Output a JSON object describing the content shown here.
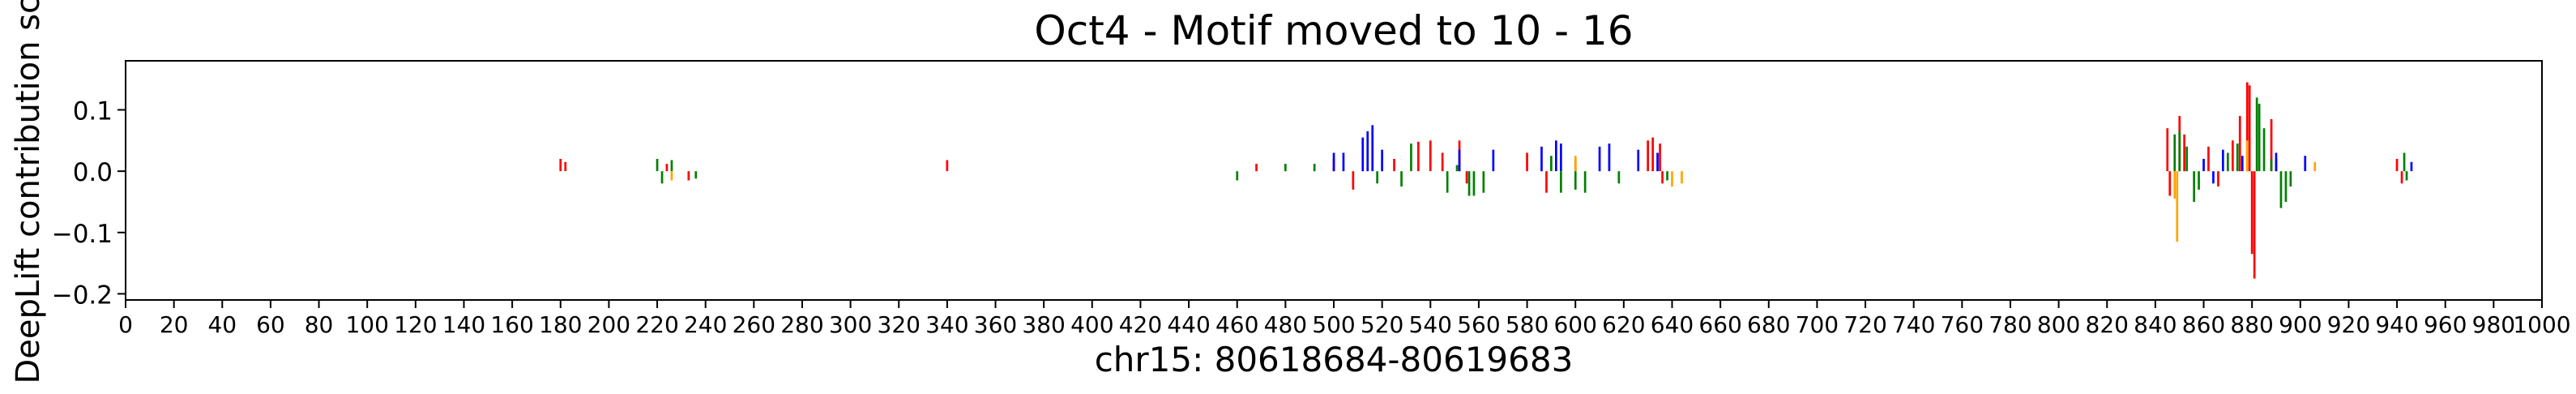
{
  "chart_data": {
    "type": "bar",
    "title": "Oct4 - Motif moved to 10 - 16",
    "xlabel": "chr15: 80618684-80619683",
    "ylabel": "DeepLift contribution sco",
    "xlim": [
      0,
      1000
    ],
    "ylim": [
      -0.21,
      0.18
    ],
    "x_ticks": [
      0,
      20,
      40,
      60,
      80,
      100,
      120,
      140,
      160,
      180,
      200,
      220,
      240,
      260,
      280,
      300,
      320,
      340,
      360,
      380,
      400,
      420,
      440,
      460,
      480,
      500,
      520,
      540,
      560,
      580,
      600,
      620,
      640,
      660,
      680,
      700,
      720,
      740,
      760,
      780,
      800,
      820,
      840,
      860,
      880,
      900,
      920,
      940,
      960,
      980,
      1000
    ],
    "x_tick_labels": [
      "0",
      "20",
      "40",
      "60",
      "80",
      "100",
      "120",
      "140",
      "160",
      "180",
      "200",
      "220",
      "240",
      "260",
      "280",
      "300",
      "320",
      "340",
      "360",
      "380",
      "400",
      "420",
      "440",
      "460",
      "480",
      "500",
      "520",
      "540",
      "560",
      "580",
      "600",
      "620",
      "640",
      "660",
      "680",
      "700",
      "720",
      "740",
      "760",
      "780",
      "800",
      "820",
      "840",
      "860",
      "880",
      "900",
      "920",
      "940",
      "960",
      "980",
      "1000"
    ],
    "y_ticks": [
      0.1,
      0.0,
      -0.1,
      -0.2
    ],
    "y_tick_labels": [
      "0.1",
      "0.0",
      "−0.1",
      "−0.2"
    ],
    "legend": "none",
    "grid": false,
    "series": [
      {
        "color": "#ff0000",
        "values": [
          [
            180,
            0.02
          ],
          [
            182,
            0.015
          ],
          [
            224,
            0.012
          ],
          [
            233,
            -0.015
          ],
          [
            340,
            0.018
          ],
          [
            468,
            0.012
          ],
          [
            500,
            0.02
          ],
          [
            508,
            -0.03
          ],
          [
            525,
            0.02
          ],
          [
            535,
            0.048
          ],
          [
            540,
            0.05
          ],
          [
            545,
            0.03
          ],
          [
            552,
            0.05
          ],
          [
            555,
            -0.02
          ],
          [
            580,
            0.03
          ],
          [
            588,
            -0.035
          ],
          [
            600,
            0.02
          ],
          [
            630,
            0.05
          ],
          [
            632,
            0.055
          ],
          [
            635,
            0.045
          ],
          [
            636,
            -0.02
          ],
          [
            845,
            0.07
          ],
          [
            846,
            -0.04
          ],
          [
            850,
            0.09
          ],
          [
            852,
            0.06
          ],
          [
            862,
            0.04
          ],
          [
            866,
            -0.025
          ],
          [
            872,
            0.05
          ],
          [
            875,
            0.09
          ],
          [
            878,
            0.145
          ],
          [
            879,
            0.14
          ],
          [
            880,
            -0.135
          ],
          [
            881,
            -0.175
          ],
          [
            888,
            0.085
          ],
          [
            890,
            0.02
          ],
          [
            940,
            0.02
          ],
          [
            942,
            -0.02
          ]
        ]
      },
      {
        "color": "#008000",
        "values": [
          [
            220,
            0.02
          ],
          [
            222,
            -0.02
          ],
          [
            226,
            0.018
          ],
          [
            236,
            -0.012
          ],
          [
            460,
            -0.015
          ],
          [
            480,
            0.012
          ],
          [
            492,
            0.012
          ],
          [
            518,
            -0.02
          ],
          [
            528,
            -0.025
          ],
          [
            532,
            0.045
          ],
          [
            547,
            -0.035
          ],
          [
            551,
            0.01
          ],
          [
            556,
            -0.04
          ],
          [
            558,
            -0.04
          ],
          [
            562,
            -0.035
          ],
          [
            590,
            0.025
          ],
          [
            594,
            -0.035
          ],
          [
            600,
            -0.03
          ],
          [
            604,
            -0.035
          ],
          [
            618,
            -0.02
          ],
          [
            638,
            -0.015
          ],
          [
            848,
            0.06
          ],
          [
            850,
            0.065
          ],
          [
            853,
            0.04
          ],
          [
            856,
            -0.05
          ],
          [
            858,
            -0.03
          ],
          [
            870,
            0.03
          ],
          [
            874,
            0.045
          ],
          [
            882,
            0.12
          ],
          [
            883,
            0.11
          ],
          [
            885,
            0.07
          ],
          [
            888,
            0.02
          ],
          [
            892,
            -0.06
          ],
          [
            894,
            -0.05
          ],
          [
            896,
            -0.025
          ],
          [
            943,
            0.03
          ],
          [
            944,
            -0.015
          ]
        ]
      },
      {
        "color": "#ffa500",
        "values": [
          [
            226,
            -0.015
          ],
          [
            520,
            0.02
          ],
          [
            600,
            0.025
          ],
          [
            640,
            -0.025
          ],
          [
            644,
            -0.02
          ],
          [
            848,
            -0.045
          ],
          [
            849,
            -0.115
          ],
          [
            878,
            0.05
          ],
          [
            906,
            0.015
          ]
        ]
      },
      {
        "color": "#0000ff",
        "values": [
          [
            500,
            0.03
          ],
          [
            504,
            0.03
          ],
          [
            512,
            0.055
          ],
          [
            514,
            0.065
          ],
          [
            516,
            0.075
          ],
          [
            520,
            0.035
          ],
          [
            552,
            0.035
          ],
          [
            566,
            0.035
          ],
          [
            586,
            0.04
          ],
          [
            592,
            0.05
          ],
          [
            594,
            0.045
          ],
          [
            610,
            0.04
          ],
          [
            614,
            0.045
          ],
          [
            626,
            0.035
          ],
          [
            634,
            0.03
          ],
          [
            860,
            0.02
          ],
          [
            864,
            -0.02
          ],
          [
            868,
            0.035
          ],
          [
            876,
            0.025
          ],
          [
            890,
            0.03
          ],
          [
            902,
            0.025
          ],
          [
            946,
            0.015
          ]
        ]
      }
    ]
  }
}
